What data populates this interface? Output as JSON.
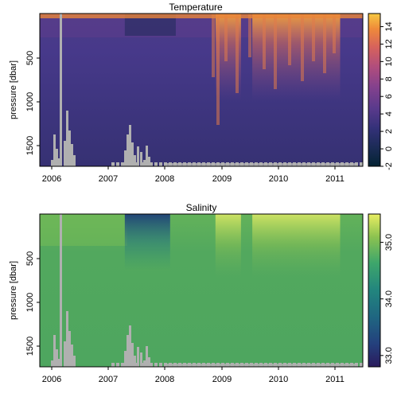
{
  "chart_data": [
    {
      "type": "heatmap",
      "title": "Temperature",
      "ylabel": "pressure [dbar]",
      "xlabel": "",
      "x_ticks": [
        "2006",
        "2007",
        "2008",
        "2009",
        "2010",
        "2011"
      ],
      "x_range": [
        2005.8,
        2011.5
      ],
      "y_ticks": [
        500,
        1000,
        1500
      ],
      "y_range": [
        0,
        1800
      ],
      "y_reversed": true,
      "colorbar": {
        "ticks": [
          -2,
          0,
          2,
          4,
          6,
          8,
          10,
          12,
          14
        ],
        "range": [
          -2,
          15.5
        ],
        "palette": "thermal"
      },
      "surface_warm_periods": [
        [
          2008.9,
          2009.35
        ],
        [
          2009.55,
          2011.1
        ]
      ],
      "missing_data_color": "#b0b0b0"
    },
    {
      "type": "heatmap",
      "title": "Salinity",
      "ylabel": "pressure [dbar]",
      "xlabel": "",
      "x_ticks": [
        "2006",
        "2007",
        "2008",
        "2009",
        "2010",
        "2011"
      ],
      "x_range": [
        2005.8,
        2011.5
      ],
      "y_ticks": [
        500,
        1000,
        1500
      ],
      "y_range": [
        0,
        1800
      ],
      "y_reversed": true,
      "colorbar": {
        "ticks": [
          "33.0",
          "34.0",
          "35.0"
        ],
        "range": [
          32.8,
          35.5
        ],
        "palette": "haline"
      },
      "surface_fresh_period": [
        2007.3,
        2008.1
      ],
      "missing_data_color": "#b0b0b0"
    }
  ]
}
